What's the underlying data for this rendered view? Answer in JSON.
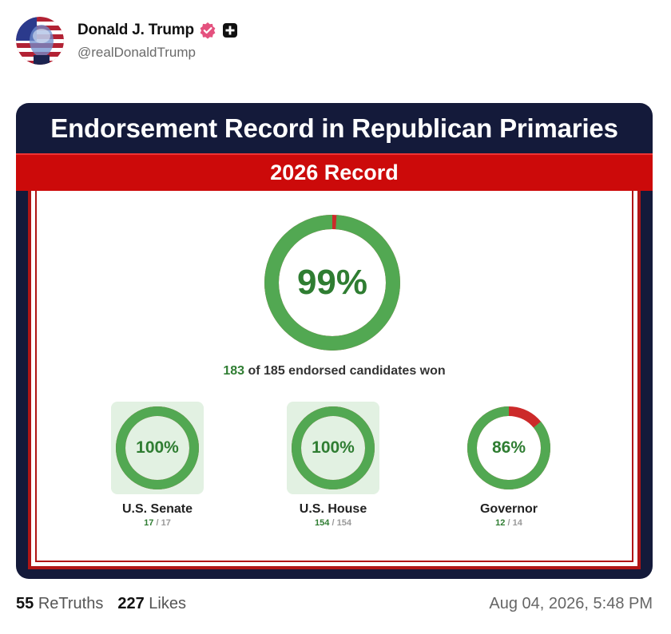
{
  "post": {
    "display_name": "Donald J. Trump",
    "handle": "@realDonaldTrump",
    "timestamp": "Aug 04, 2026, 5:48 PM"
  },
  "icons": {
    "verified": "verified-badge-icon",
    "plus": "plus-badge-icon",
    "verified_color": "#e4517e"
  },
  "graphic": {
    "title": "Endorsement Record in Republican Primaries",
    "subtitle": "2026 Record",
    "overall": {
      "percent": 0.99,
      "percent_label": "99%",
      "won": "183",
      "summary_text": "of 185 endorsed candidates won"
    },
    "categories": [
      {
        "name": "U.S. Senate",
        "percent": 1.0,
        "percent_label": "100%",
        "won": "17",
        "total": "/ 17"
      },
      {
        "name": "U.S. House",
        "percent": 1.0,
        "percent_label": "100%",
        "won": "154",
        "total": "/ 154"
      },
      {
        "name": "Governor",
        "percent": 0.86,
        "percent_label": "86%",
        "won": "12",
        "total": "/ 14"
      }
    ],
    "colors": {
      "navy": "#141a3a",
      "red": "#cc0a0a",
      "win_green": "#52a852",
      "loss_red": "#cc2a2a",
      "text_green": "#2f7d32"
    }
  },
  "engagement": {
    "retruths_count": "55",
    "retruths_label": "ReTruths",
    "likes_count": "227",
    "likes_label": "Likes"
  }
}
